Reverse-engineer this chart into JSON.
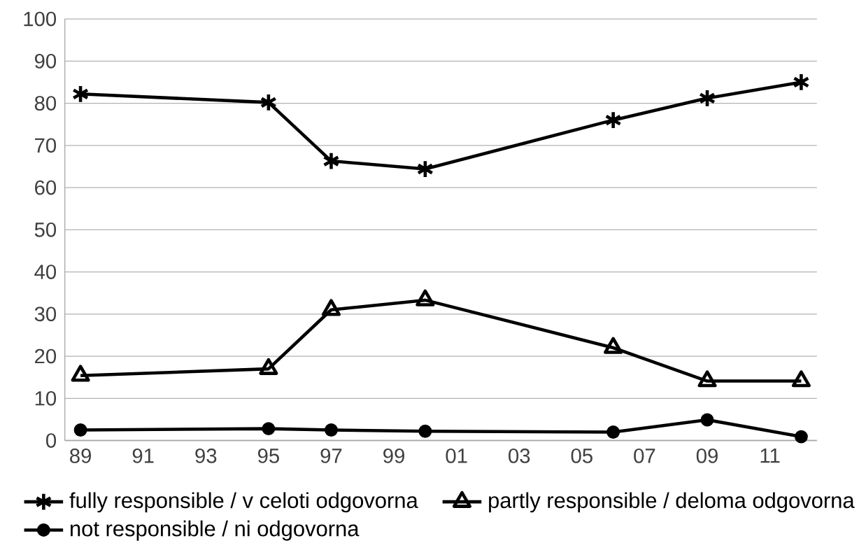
{
  "chart_data": {
    "type": "line",
    "x": [
      1989,
      1995,
      1997,
      2000,
      2006,
      2009,
      2012
    ],
    "xlim": [
      1988.5,
      2012.5
    ],
    "xticks": [
      {
        "value": 1989,
        "label": "89"
      },
      {
        "value": 1991,
        "label": "91"
      },
      {
        "value": 1993,
        "label": "93"
      },
      {
        "value": 1995,
        "label": "95"
      },
      {
        "value": 1997,
        "label": "97"
      },
      {
        "value": 1999,
        "label": "99"
      },
      {
        "value": 2001,
        "label": "01"
      },
      {
        "value": 2003,
        "label": "03"
      },
      {
        "value": 2005,
        "label": "05"
      },
      {
        "value": 2007,
        "label": "07"
      },
      {
        "value": 2009,
        "label": "09"
      },
      {
        "value": 2011,
        "label": "11"
      }
    ],
    "ylim": [
      0,
      100
    ],
    "yticks": [
      0,
      10,
      20,
      30,
      40,
      50,
      60,
      70,
      80,
      90,
      100
    ],
    "grid": "y",
    "legend": "bottom",
    "series": [
      {
        "name": "fully responsible  / v celoti odgovorna",
        "color": "#000000",
        "marker": "cross",
        "values": [
          82.2,
          80.2,
          66.3,
          64.4,
          76.0,
          81.2,
          85.0
        ]
      },
      {
        "name": "partly responsible  / deloma odgovorna",
        "color": "#000000",
        "marker": "triangle",
        "values": [
          15.4,
          17.0,
          31.0,
          33.3,
          22.0,
          14.1,
          14.1
        ]
      },
      {
        "name": "not responsible  / ni odgovorna",
        "color": "#000000",
        "marker": "circle",
        "values": [
          2.5,
          2.8,
          2.5,
          2.2,
          2.0,
          4.9,
          0.9
        ]
      }
    ]
  }
}
